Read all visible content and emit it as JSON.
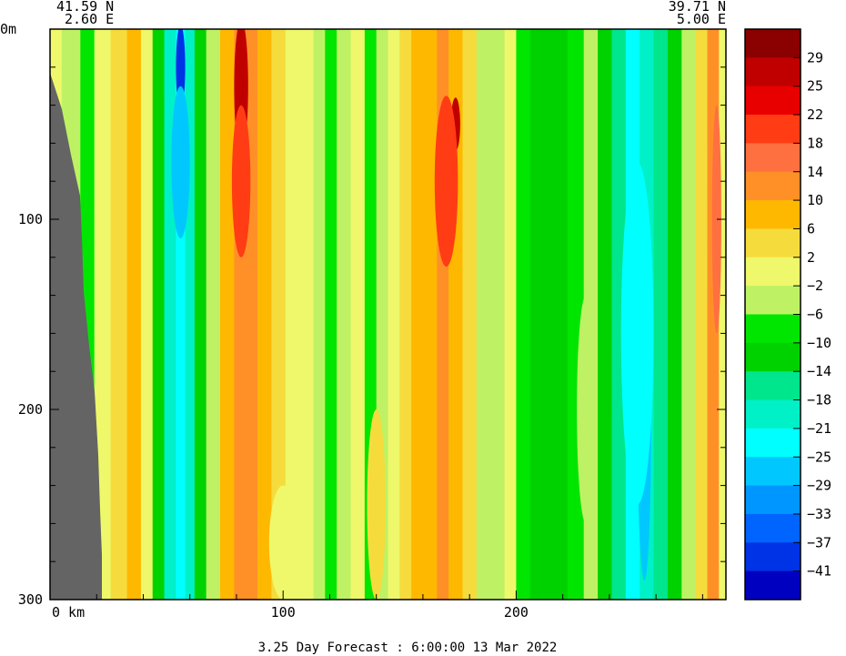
{
  "header": {
    "left": {
      "lat": "41.59 N",
      "lon": "2.60 E"
    },
    "right": {
      "lat": "39.71 N",
      "lon": "5.00 E"
    }
  },
  "footer": {
    "forecast": "3.25 Day Forecast :  6:00:00  13 Mar 2022"
  },
  "chart_data": {
    "type": "heatmap",
    "title": "",
    "xlabel": "",
    "ylabel": "",
    "x_unit": "km",
    "y_unit": "m",
    "xlim": [
      0,
      290
    ],
    "ylim": [
      300,
      0
    ],
    "x_ticks": [
      {
        "value": 0,
        "label": "0 km"
      },
      {
        "value": 100,
        "label": "100"
      },
      {
        "value": 200,
        "label": "200"
      }
    ],
    "y_ticks": [
      {
        "value": 0,
        "label": "0m"
      },
      {
        "value": 100,
        "label": "100"
      },
      {
        "value": 200,
        "label": "200"
      },
      {
        "value": 300,
        "label": "300"
      }
    ],
    "colorbar": {
      "labels": [
        "29",
        "25",
        "22",
        "18",
        "14",
        "10",
        "6",
        "2",
        "-2",
        "-6",
        "-10",
        "-14",
        "-18",
        "-21",
        "-25",
        "-29",
        "-33",
        "-37",
        "-41"
      ],
      "colors": [
        "#8B0000",
        "#C00000",
        "#E80000",
        "#FF3C14",
        "#FF7040",
        "#FF9028",
        "#FFB800",
        "#F5DC3C",
        "#EEF86A",
        "#BEF264",
        "#00E600",
        "#00D200",
        "#00E68C",
        "#00F0C8",
        "#00FFFF",
        "#00C8FF",
        "#0096FF",
        "#0064FF",
        "#0032E6",
        "#0000C0"
      ]
    },
    "land_color": "#646464",
    "columns": [
      {
        "x": 0,
        "value": -2
      },
      {
        "x": 10,
        "value": -6
      },
      {
        "x": 16,
        "value": -8
      },
      {
        "x": 22,
        "value": 0
      },
      {
        "x": 30,
        "value": 4
      },
      {
        "x": 36,
        "value": 6
      },
      {
        "x": 42,
        "value": -2
      },
      {
        "x": 46,
        "value": -12
      },
      {
        "x": 52,
        "value": -19
      },
      {
        "x": 56,
        "value": -25
      },
      {
        "x": 60,
        "value": -19
      },
      {
        "x": 64,
        "value": -12
      },
      {
        "x": 70,
        "value": -4
      },
      {
        "x": 76,
        "value": 8
      },
      {
        "x": 82,
        "value": 12
      },
      {
        "x": 86,
        "value": 10
      },
      {
        "x": 92,
        "value": 6
      },
      {
        "x": 98,
        "value": 2
      },
      {
        "x": 104,
        "value": -1
      },
      {
        "x": 110,
        "value": 0
      },
      {
        "x": 116,
        "value": -4
      },
      {
        "x": 120,
        "value": -9
      },
      {
        "x": 126,
        "value": -4
      },
      {
        "x": 132,
        "value": -1
      },
      {
        "x": 138,
        "value": -8
      },
      {
        "x": 142,
        "value": -6
      },
      {
        "x": 148,
        "value": 0
      },
      {
        "x": 152,
        "value": 4
      },
      {
        "x": 158,
        "value": 7
      },
      {
        "x": 164,
        "value": 9
      },
      {
        "x": 168,
        "value": 11
      },
      {
        "x": 174,
        "value": 8
      },
      {
        "x": 180,
        "value": 2
      },
      {
        "x": 186,
        "value": -4
      },
      {
        "x": 192,
        "value": -6
      },
      {
        "x": 198,
        "value": -2
      },
      {
        "x": 202,
        "value": -9
      },
      {
        "x": 210,
        "value": -11
      },
      {
        "x": 218,
        "value": -11
      },
      {
        "x": 226,
        "value": -8
      },
      {
        "x": 232,
        "value": -4
      },
      {
        "x": 238,
        "value": -13
      },
      {
        "x": 244,
        "value": -18
      },
      {
        "x": 250,
        "value": -22
      },
      {
        "x": 256,
        "value": -20
      },
      {
        "x": 262,
        "value": -17
      },
      {
        "x": 268,
        "value": -14
      },
      {
        "x": 274,
        "value": -6
      },
      {
        "x": 280,
        "value": 4
      },
      {
        "x": 284,
        "value": 12
      },
      {
        "x": 290,
        "value": -1
      }
    ],
    "hotspots": [
      {
        "x": 56,
        "y": 20,
        "rx": 2,
        "ry": 22,
        "value": -41
      },
      {
        "x": 56,
        "y": 70,
        "rx": 4,
        "ry": 40,
        "value": -29
      },
      {
        "x": 82,
        "y": 30,
        "rx": 3,
        "ry": 35,
        "value": 25
      },
      {
        "x": 82,
        "y": 80,
        "rx": 4,
        "ry": 40,
        "value": 18
      },
      {
        "x": 168,
        "y": 80,
        "rx": 2,
        "ry": 16,
        "value": 25
      },
      {
        "x": 174,
        "y": 50,
        "rx": 2,
        "ry": 14,
        "value": 25
      },
      {
        "x": 170,
        "y": 80,
        "rx": 5,
        "ry": 45,
        "value": 18
      },
      {
        "x": 255,
        "y": 200,
        "rx": 3,
        "ry": 90,
        "value": -29
      },
      {
        "x": 252,
        "y": 160,
        "rx": 7,
        "ry": 90,
        "value": -25
      },
      {
        "x": 286,
        "y": 100,
        "rx": 2,
        "ry": 60,
        "value": 14
      },
      {
        "x": 230,
        "y": 200,
        "rx": 4,
        "ry": 60,
        "value": -4
      },
      {
        "x": 140,
        "y": 250,
        "rx": 4,
        "ry": 50,
        "value": 2
      },
      {
        "x": 100,
        "y": 270,
        "rx": 6,
        "ry": 30,
        "value": -2
      }
    ]
  }
}
